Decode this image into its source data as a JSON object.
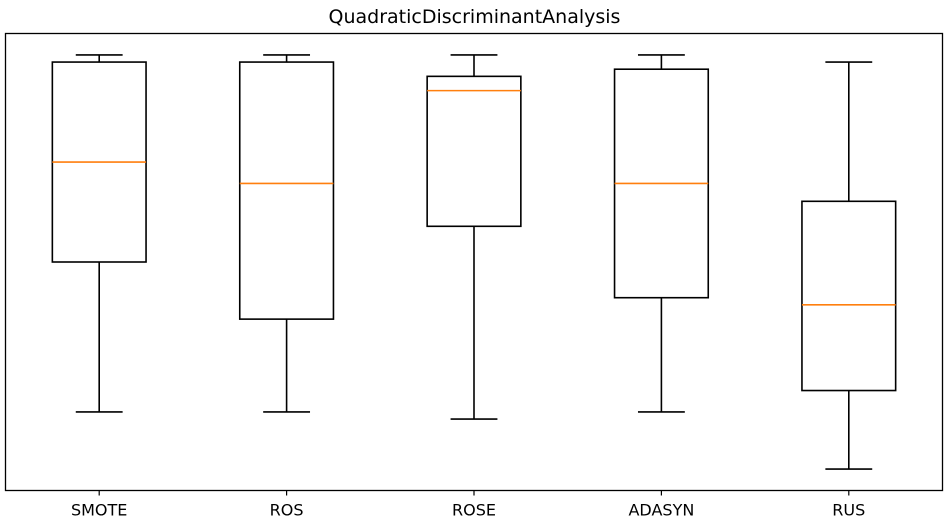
{
  "chart_data": {
    "type": "boxplot",
    "title": "QuadraticDiscriminantAnalysis",
    "xlabel": "",
    "ylabel": "",
    "categories": [
      "SMOTE",
      "ROS",
      "ROSE",
      "ADASYN",
      "RUS"
    ],
    "boxes": [
      {
        "label": "SMOTE",
        "whisker_low": 0.12,
        "q1": 0.54,
        "median": 0.82,
        "q3": 1.1,
        "whisker_high": 1.12
      },
      {
        "label": "ROS",
        "whisker_low": 0.12,
        "q1": 0.38,
        "median": 0.76,
        "q3": 1.1,
        "whisker_high": 1.12
      },
      {
        "label": "ROSE",
        "whisker_low": 0.1,
        "q1": 0.64,
        "median": 1.02,
        "q3": 1.06,
        "whisker_high": 1.12
      },
      {
        "label": "ADASYN",
        "whisker_low": 0.12,
        "q1": 0.44,
        "median": 0.76,
        "q3": 1.08,
        "whisker_high": 1.12
      },
      {
        "label": "RUS",
        "whisker_low": -0.04,
        "q1": 0.18,
        "median": 0.42,
        "q3": 0.71,
        "whisker_high": 1.1
      }
    ],
    "ylim": [
      -0.1,
      1.18
    ],
    "y_ticks_visible": false,
    "grid": false,
    "legend": "none",
    "colors": {
      "box": "#000000",
      "median": "#ff7f0e",
      "whisker": "#000000"
    }
  }
}
